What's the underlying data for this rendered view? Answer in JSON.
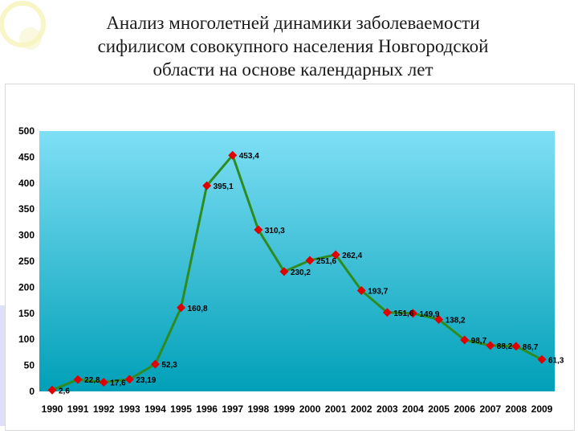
{
  "slide": {
    "title_lines": [
      "Анализ многолетней динамики заболеваемости",
      "сифилисом совокупного населения Новгородской",
      "области на основе календарных лет"
    ]
  },
  "colors": {
    "plot_top": "#7fdff5",
    "plot_bottom": "#00a0b8",
    "line": "#2e8b1f",
    "marker": "#e00000"
  },
  "chart_data": {
    "type": "line",
    "title": "Анализ многолетней динамики заболеваемости сифилисом совокупного населения Новгородской области на основе календарных лет",
    "xlabel": "",
    "ylabel": "",
    "categories": [
      "1990",
      "1991",
      "1992",
      "1993",
      "1994",
      "1995",
      "1996",
      "1997",
      "1998",
      "1999",
      "2000",
      "2001",
      "2002",
      "2003",
      "2004",
      "2005",
      "2006",
      "2007",
      "2008",
      "2009"
    ],
    "series": [
      {
        "values": [
          2.6,
          22.8,
          17.6,
          23.19,
          52.3,
          160.8,
          395.1,
          453.4,
          310.3,
          230.2,
          251.6,
          262.4,
          193.7,
          151.6,
          149.9,
          138.2,
          98.7,
          88.2,
          86.7,
          61.3
        ],
        "labels": [
          "2,6",
          "22,8",
          "17,6",
          "23,19",
          "52,3",
          "160,8",
          "395,1",
          "453,4",
          "310,3",
          "230,2",
          "251,6",
          "262,4",
          "193,7",
          "151,6",
          "149,9",
          "138,2",
          "98,7",
          "88,2",
          "86,7",
          "61,3"
        ]
      }
    ],
    "ylim": [
      0,
      500
    ],
    "yticks": [
      0,
      50,
      100,
      150,
      200,
      250,
      300,
      350,
      400,
      450,
      500
    ],
    "grid": false,
    "legend": "none"
  }
}
